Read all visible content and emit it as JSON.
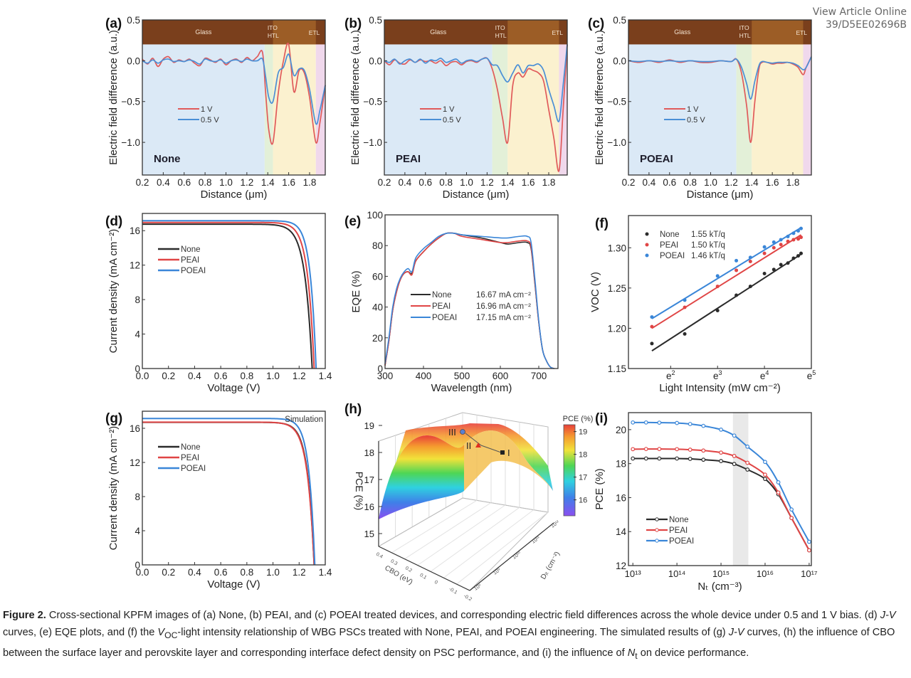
{
  "header": {
    "view_article_label": "View Article Online",
    "doi_fragment": "39/D5EE02696B"
  },
  "caption": {
    "label": "Figure 2.",
    "text_1": " Cross-sectional KPFM images of (a) None, (b) PEAI, and (c) POEAI treated devices, and corresponding electric field differences across the whole device under 0.5 and 1 V bias. (d) ",
    "jv": "J-V",
    "text_2": " curves, (e) EQE plots, and (f) the ",
    "voc_v": "V",
    "voc_sub": "OC",
    "text_3": "-light intensity relationship of WBG PSCs treated with None, PEAI, and POEAI engineering. The simulated results of (g) ",
    "text_4": " curves, (h) the influence of CBO between the surface layer and perovskite layer and corresponding interface defect density on PSC performance, and (i) the influence of ",
    "nt_n": "N",
    "nt_sub": "t",
    "text_5": " on device performance."
  },
  "colors": {
    "none": "#2b2b2b",
    "peai": "#e04545",
    "poeai": "#3a86d8",
    "v1": "#e05a5a",
    "v05": "#4a8fd6",
    "kpfm_brown": "#7a3f1c",
    "region_glass": "#dbe9f6",
    "region_ito": "#e3f0d8",
    "region_pvk": "#fbf1cf",
    "region_etl": "#f0d8ec"
  },
  "chart_data": [
    {
      "id": "a",
      "panel_label": "(a)",
      "type": "line",
      "title": "None",
      "xlabel": "Distance (μm)",
      "ylabel": "Electric field difference (a.u.)",
      "xlim": [
        0.2,
        1.95
      ],
      "ylim": [
        -1.4,
        0.5
      ],
      "xticks": [
        "0.2",
        "0.4",
        "0.6",
        "0.8",
        "1.0",
        "1.2",
        "1.4",
        "1.6",
        "1.8"
      ],
      "yticks": [
        "0.5",
        "0.0",
        "-0.5",
        "-1.0"
      ],
      "layer_labels": [
        "Glass",
        "ITO",
        "HTL",
        "ETL"
      ],
      "regions": [
        [
          0.2,
          1.37,
          "glass"
        ],
        [
          1.37,
          1.45,
          "ito"
        ],
        [
          1.45,
          1.86,
          "pvk"
        ],
        [
          1.86,
          1.95,
          "etl"
        ]
      ],
      "legend": [
        "1 V",
        "0.5 V"
      ],
      "x": [
        0.2,
        0.25,
        0.3,
        0.35,
        0.4,
        0.45,
        0.5,
        0.55,
        0.6,
        0.65,
        0.7,
        0.75,
        0.8,
        0.85,
        0.9,
        0.95,
        1.0,
        1.05,
        1.1,
        1.15,
        1.2,
        1.25,
        1.3,
        1.35,
        1.38,
        1.41,
        1.45,
        1.5,
        1.55,
        1.6,
        1.65,
        1.7,
        1.75,
        1.8,
        1.86,
        1.9,
        1.95
      ],
      "series": [
        {
          "name": "1 V",
          "values": [
            0.02,
            -0.04,
            0.03,
            -0.07,
            0.02,
            0.05,
            -0.02,
            0.01,
            -0.01,
            0.02,
            -0.03,
            -0.06,
            0.03,
            0.01,
            -0.02,
            0.02,
            -0.05,
            0.0,
            0.02,
            -0.02,
            0.04,
            0.0,
            0.05,
            0.1,
            -0.4,
            -0.85,
            -1.0,
            -0.4,
            0.0,
            0.2,
            -0.38,
            -0.12,
            -0.15,
            -0.45,
            -1.0,
            -0.75,
            -0.3
          ]
        },
        {
          "name": "0.5 V",
          "values": [
            0.0,
            -0.03,
            0.01,
            -0.03,
            0.01,
            0.02,
            -0.01,
            0.0,
            -0.01,
            0.01,
            -0.01,
            -0.04,
            0.02,
            0.0,
            -0.01,
            0.01,
            -0.03,
            0.0,
            0.01,
            -0.01,
            0.02,
            0.0,
            0.0,
            0.02,
            -0.2,
            -0.45,
            -0.5,
            -0.15,
            -0.08,
            0.08,
            -0.18,
            -0.1,
            -0.12,
            -0.35,
            -0.77,
            -0.6,
            -0.3
          ]
        }
      ]
    },
    {
      "id": "b",
      "panel_label": "(b)",
      "type": "line",
      "title": "PEAI",
      "xlabel": "Distance (μm)",
      "ylabel": "Electric field difference (a.u.)",
      "xlim": [
        0.2,
        1.98
      ],
      "ylim": [
        -1.4,
        0.5
      ],
      "xticks": [
        "0.2",
        "0.4",
        "0.6",
        "0.8",
        "1.0",
        "1.2",
        "1.4",
        "1.6",
        "1.8"
      ],
      "yticks": [
        "0.5",
        "0.0",
        "-0.5",
        "-1.0"
      ],
      "layer_labels": [
        "Glass",
        "ITO",
        "HTL",
        "ETL"
      ],
      "regions": [
        [
          0.2,
          1.25,
          "glass"
        ],
        [
          1.25,
          1.4,
          "ito"
        ],
        [
          1.4,
          1.9,
          "pvk"
        ],
        [
          1.9,
          1.98,
          "etl"
        ]
      ],
      "legend": [
        "1 V",
        "0.5 V"
      ],
      "x": [
        0.2,
        0.25,
        0.3,
        0.35,
        0.4,
        0.45,
        0.5,
        0.55,
        0.6,
        0.65,
        0.7,
        0.75,
        0.8,
        0.85,
        0.9,
        0.95,
        1.0,
        1.05,
        1.1,
        1.15,
        1.2,
        1.25,
        1.3,
        1.35,
        1.4,
        1.45,
        1.5,
        1.55,
        1.6,
        1.65,
        1.7,
        1.75,
        1.8,
        1.85,
        1.9,
        1.94,
        1.98
      ],
      "series": [
        {
          "name": "1 V",
          "values": [
            0.0,
            -0.05,
            0.01,
            -0.03,
            -0.04,
            0.01,
            -0.02,
            0.01,
            -0.01,
            0.0,
            -0.03,
            0.0,
            -0.06,
            -0.02,
            -0.01,
            -0.05,
            -0.01,
            0.0,
            -0.02,
            0.02,
            0.03,
            -0.1,
            -0.35,
            -0.7,
            -1.0,
            -0.3,
            -0.15,
            -0.2,
            -0.1,
            -0.12,
            -0.15,
            -0.25,
            -0.6,
            -0.95,
            -1.35,
            -0.6,
            0.2
          ]
        },
        {
          "name": "0.5 V",
          "values": [
            0.0,
            -0.02,
            0.02,
            -0.04,
            0.0,
            0.02,
            -0.02,
            0.02,
            -0.03,
            0.01,
            0.0,
            0.03,
            -0.02,
            0.0,
            0.02,
            -0.03,
            0.0,
            0.01,
            -0.01,
            0.02,
            0.03,
            -0.05,
            -0.06,
            -0.18,
            -0.26,
            -0.15,
            -0.05,
            -0.15,
            -0.06,
            -0.06,
            -0.04,
            -0.12,
            -0.35,
            -0.55,
            -0.74,
            -0.3,
            0.2
          ]
        }
      ]
    },
    {
      "id": "c",
      "panel_label": "(c)",
      "type": "line",
      "title": "POEAI",
      "xlabel": "Distance (μm)",
      "ylabel": "Electric field difference (a.u.)",
      "xlim": [
        0.2,
        1.98
      ],
      "ylim": [
        -1.4,
        0.5
      ],
      "xticks": [
        "0.2",
        "0.4",
        "0.6",
        "0.8",
        "1.0",
        "1.2",
        "1.4",
        "1.6",
        "1.8"
      ],
      "yticks": [
        "0.5",
        "0.0",
        "-0.5",
        "-1.0"
      ],
      "layer_labels": [
        "Glass",
        "ITO",
        "HTL",
        "ETL"
      ],
      "regions": [
        [
          0.2,
          1.25,
          "glass"
        ],
        [
          1.25,
          1.4,
          "ito"
        ],
        [
          1.4,
          1.9,
          "pvk"
        ],
        [
          1.9,
          1.98,
          "etl"
        ]
      ],
      "legend": [
        "1 V",
        "0.5 V"
      ],
      "x": [
        0.2,
        0.3,
        0.4,
        0.5,
        0.6,
        0.7,
        0.8,
        0.9,
        1.0,
        1.1,
        1.2,
        1.25,
        1.3,
        1.35,
        1.39,
        1.43,
        1.47,
        1.5,
        1.55,
        1.6,
        1.65,
        1.7,
        1.75,
        1.8,
        1.85,
        1.9,
        1.93,
        1.98
      ],
      "series": [
        {
          "name": "1 V",
          "values": [
            0.0,
            -0.02,
            0.0,
            -0.02,
            0.01,
            -0.02,
            0.0,
            -0.02,
            -0.02,
            0.0,
            -0.01,
            0.02,
            -0.15,
            -0.55,
            -1.0,
            -0.5,
            -0.1,
            -0.02,
            -0.02,
            -0.04,
            -0.03,
            -0.03,
            -0.02,
            -0.04,
            -0.08,
            -0.17,
            -0.08,
            0.05
          ]
        },
        {
          "name": "0.5 V",
          "values": [
            0.0,
            -0.01,
            0.0,
            -0.01,
            0.0,
            -0.01,
            0.0,
            -0.01,
            -0.01,
            0.0,
            -0.01,
            0.02,
            -0.08,
            -0.28,
            -0.47,
            -0.25,
            -0.06,
            -0.01,
            -0.02,
            -0.03,
            -0.02,
            -0.02,
            -0.02,
            -0.03,
            -0.06,
            -0.11,
            -0.08,
            0.05
          ]
        }
      ]
    },
    {
      "id": "d",
      "panel_label": "(d)",
      "type": "line",
      "xlabel": "Voltage (V)",
      "ylabel": "Current density (mA cm⁻²)",
      "xlim": [
        0,
        1.4
      ],
      "ylim": [
        0,
        18
      ],
      "xticks": [
        "0.0",
        "0.2",
        "0.4",
        "0.6",
        "0.8",
        "1.0",
        "1.2",
        "1.4"
      ],
      "yticks": [
        "0",
        "4",
        "8",
        "12",
        "16"
      ],
      "legend": [
        "None",
        "PEAI",
        "POEAI"
      ],
      "series": [
        {
          "name": "None",
          "jsc": 16.75,
          "voc": 1.3,
          "knee": 0.055
        },
        {
          "name": "PEAI",
          "jsc": 16.95,
          "voc": 1.315,
          "knee": 0.05
        },
        {
          "name": "POEAI",
          "jsc": 17.15,
          "voc": 1.33,
          "knee": 0.045
        }
      ]
    },
    {
      "id": "e",
      "panel_label": "(e)",
      "type": "line",
      "xlabel": "Wavelength (nm)",
      "ylabel": "EQE (%)",
      "xlim": [
        300,
        750
      ],
      "ylim": [
        0,
        100
      ],
      "xticks": [
        "300",
        "400",
        "500",
        "600",
        "700"
      ],
      "yticks": [
        "0",
        "20",
        "40",
        "60",
        "80",
        "100"
      ],
      "legend": [
        {
          "name": "None",
          "value": "16.67 mA cm⁻²"
        },
        {
          "name": "PEAI",
          "value": "16.96 mA cm⁻²"
        },
        {
          "name": "POEAI",
          "value": "17.15 mA cm⁻²"
        }
      ],
      "x": [
        300,
        310,
        320,
        330,
        340,
        350,
        360,
        370,
        380,
        400,
        420,
        440,
        460,
        480,
        500,
        550,
        600,
        620,
        650,
        670,
        680,
        690,
        700,
        710,
        720,
        730,
        740
      ],
      "series": [
        {
          "name": "None",
          "values": [
            2,
            18,
            38,
            50,
            58,
            62,
            63,
            62,
            70,
            76,
            81,
            85,
            88,
            88,
            87,
            85,
            82,
            81,
            82,
            82,
            78,
            55,
            30,
            12,
            5,
            1,
            0
          ]
        },
        {
          "name": "PEAI",
          "values": [
            2,
            18,
            38,
            50,
            58,
            62,
            63,
            61,
            70,
            76,
            81,
            85,
            88,
            88,
            86,
            84,
            82,
            82,
            83,
            83,
            79,
            56,
            30,
            12,
            5,
            1,
            0
          ]
        },
        {
          "name": "POEAI",
          "values": [
            3,
            20,
            40,
            52,
            59,
            63,
            65,
            63,
            72,
            78,
            82,
            86,
            88,
            88,
            87,
            86,
            85,
            85,
            86,
            86,
            82,
            58,
            31,
            12,
            5,
            1,
            0
          ]
        }
      ]
    },
    {
      "id": "f",
      "panel_label": "(f)",
      "type": "scatter",
      "xlabel": "Light Intensity (mW cm⁻²)",
      "ylabel": "V_OC (V)",
      "xlim": [
        1.1,
        5.0
      ],
      "ylim": [
        1.15,
        1.34
      ],
      "xticks": [
        "e2",
        "e3",
        "e4",
        "e5"
      ],
      "xtick_values": [
        2,
        3,
        4,
        5
      ],
      "yticks": [
        "1.15",
        "1.20",
        "1.25",
        "1.30"
      ],
      "legend": [
        {
          "name": "None",
          "value": "1.55 kT/q"
        },
        {
          "name": "PEAI",
          "value": "1.50 kT/q"
        },
        {
          "name": "POEAI",
          "value": "1.46 kT/q"
        }
      ],
      "x_ln": [
        1.6,
        2.3,
        3.0,
        3.4,
        3.7,
        4.0,
        4.2,
        4.35,
        4.5,
        4.62,
        4.72,
        4.78
      ],
      "series": [
        {
          "name": "None",
          "values": [
            1.181,
            1.193,
            1.222,
            1.241,
            1.252,
            1.268,
            1.273,
            1.279,
            1.281,
            1.287,
            1.29,
            1.293
          ],
          "fit": [
            1.172,
            1.292
          ]
        },
        {
          "name": "PEAI",
          "values": [
            1.202,
            1.226,
            1.252,
            1.272,
            1.283,
            1.293,
            1.3,
            1.304,
            1.308,
            1.31,
            1.311,
            1.313
          ],
          "fit": [
            1.2,
            1.316
          ]
        },
        {
          "name": "POEAI",
          "values": [
            1.214,
            1.235,
            1.265,
            1.284,
            1.288,
            1.301,
            1.307,
            1.31,
            1.314,
            1.318,
            1.321,
            1.324
          ],
          "fit": [
            1.212,
            1.325
          ]
        }
      ]
    },
    {
      "id": "g",
      "panel_label": "(g)",
      "type": "line",
      "annotation": "Simulation",
      "xlabel": "Voltage (V)",
      "ylabel": "Current density (mA cm⁻²)",
      "xlim": [
        0,
        1.4
      ],
      "ylim": [
        0,
        18
      ],
      "xticks": [
        "0.0",
        "0.2",
        "0.4",
        "0.6",
        "0.8",
        "1.0",
        "1.2",
        "1.4"
      ],
      "yticks": [
        "0",
        "4",
        "8",
        "12",
        "16"
      ],
      "legend": [
        "None",
        "PEAI",
        "POEAI"
      ],
      "series": [
        {
          "name": "None",
          "jsc": 16.7,
          "voc": 1.315,
          "knee": 0.05
        },
        {
          "name": "PEAI",
          "jsc": 16.72,
          "voc": 1.315,
          "knee": 0.052
        },
        {
          "name": "POEAI",
          "jsc": 17.15,
          "voc": 1.32,
          "knee": 0.045
        }
      ]
    },
    {
      "id": "h",
      "panel_label": "(h)",
      "type": "heatmap",
      "subtype": "3d-surface",
      "zlabel": "PCE (%)",
      "zticks": [
        "15",
        "16",
        "17",
        "18",
        "19"
      ],
      "xlabel": "CBO (eV)",
      "xticks": [
        "0.4",
        "0.3",
        "0.2",
        "0.1",
        "0",
        "-0.1",
        "-0.2"
      ],
      "ylabel": "D_it (cm⁻²)",
      "yticks": [
        "10⁸",
        "10⁹",
        "10¹⁰",
        "10¹¹",
        "10¹²"
      ],
      "colorbar_label": "PCE (%)",
      "colorbar_ticks": [
        "16",
        "17",
        "18",
        "19"
      ],
      "colorbar_range": [
        15.3,
        19.3
      ],
      "markers": [
        {
          "label": "I",
          "shape": "square",
          "color": "#222222"
        },
        {
          "label": "II",
          "shape": "triangle",
          "color": "#e03020"
        },
        {
          "label": "III",
          "shape": "circle",
          "color": "#5a7fd0"
        }
      ]
    },
    {
      "id": "i",
      "panel_label": "(i)",
      "type": "line",
      "xlabel": "N_t (cm⁻³)",
      "ylabel": "PCE (%)",
      "xlim_log": [
        12.9,
        17.05
      ],
      "ylim": [
        12,
        21
      ],
      "xticks": [
        "10¹³",
        "10¹⁴",
        "10¹⁵",
        "10¹⁶",
        "10¹⁷"
      ],
      "xtick_values": [
        13,
        14,
        15,
        16,
        17
      ],
      "yticks": [
        "12",
        "14",
        "16",
        "18",
        "20"
      ],
      "shaded_band_log": [
        15.27,
        15.62
      ],
      "legend": [
        "None",
        "PEAI",
        "POEAI"
      ],
      "x_log": [
        13,
        13.3,
        13.6,
        14,
        14.3,
        14.6,
        15,
        15.3,
        15.6,
        16,
        16.3,
        16.6,
        17
      ],
      "series": [
        {
          "name": "None",
          "values": [
            18.3,
            18.3,
            18.3,
            18.3,
            18.28,
            18.23,
            18.15,
            17.98,
            17.65,
            17.1,
            16.2,
            14.8,
            12.9
          ]
        },
        {
          "name": "PEAI",
          "values": [
            18.85,
            18.86,
            18.86,
            18.85,
            18.82,
            18.77,
            18.65,
            18.45,
            18.05,
            17.35,
            16.3,
            14.8,
            12.9
          ]
        },
        {
          "name": "POEAI",
          "values": [
            20.42,
            20.42,
            20.41,
            20.39,
            20.33,
            20.22,
            20.0,
            19.65,
            19.0,
            18.1,
            16.9,
            15.3,
            13.4
          ]
        }
      ]
    }
  ]
}
